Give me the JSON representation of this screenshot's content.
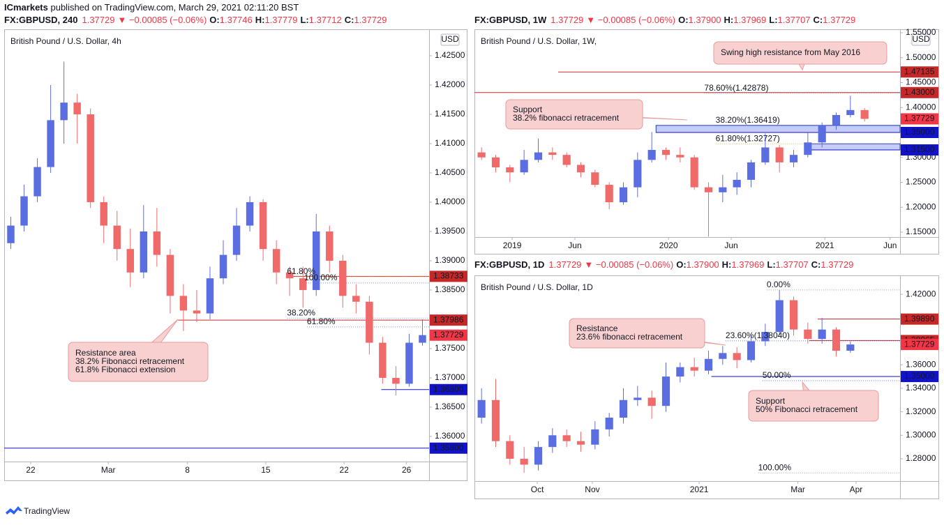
{
  "header": {
    "publisher": "ICmarkets",
    "published": " published on TradingView.com, March 29, 2021 02:11:20 BST"
  },
  "footer": {
    "brand": "TradingView"
  },
  "chart_data": [
    {
      "type": "candlestick",
      "title": "British Pound / U.S. Dollar, 4h",
      "currency": "USD",
      "info": {
        "symbol": "FX:GBPUSD, 240",
        "last": "1.37729",
        "change": "▼ −0.00085 (−0.06%)",
        "ohlc": [
          [
            "O:",
            "1.37746"
          ],
          [
            "H:",
            "1.37779"
          ],
          [
            "L:",
            "1.37712"
          ],
          [
            "C:",
            "1.37729"
          ]
        ]
      },
      "up_color": "#5b6ee1",
      "down_color": "#f06a6a",
      "xlim": [
        0,
        32
      ],
      "xticks": [
        {
          "value": 2.0,
          "label": "22"
        },
        {
          "value": 7.84,
          "label": "Mar"
        },
        {
          "value": 13.8,
          "label": "8"
        },
        {
          "value": 19.7,
          "label": "15"
        },
        {
          "value": 25.6,
          "label": "22"
        },
        {
          "value": 30.3,
          "label": "26"
        }
      ],
      "ylim": [
        1.35571,
        1.42952
      ],
      "yticks": [
        {
          "value": 1.36,
          "label": "1.36000"
        },
        {
          "value": 1.365,
          "label": "1.36500"
        },
        {
          "value": 1.37,
          "label": "1.37000"
        },
        {
          "value": 1.375,
          "label": "1.37500"
        },
        {
          "value": 1.38,
          "label": "1.38000"
        },
        {
          "value": 1.385,
          "label": "1.38500"
        },
        {
          "value": 1.39,
          "label": "1.39000"
        },
        {
          "value": 1.395,
          "label": "1.39500"
        },
        {
          "value": 1.4,
          "label": "1.40000"
        },
        {
          "value": 1.405,
          "label": "1.40500"
        },
        {
          "value": 1.41,
          "label": "1.41000"
        },
        {
          "value": 1.415,
          "label": "1.41500"
        },
        {
          "value": 1.42,
          "label": "1.42000"
        },
        {
          "value": 1.425,
          "label": "1.42500"
        }
      ],
      "open": [
        1.393,
        1.396,
        1.401,
        1.406,
        1.414,
        1.417,
        1.415,
        1.4,
        1.396,
        1.392,
        1.388,
        1.395,
        1.391,
        1.384,
        1.3815,
        1.381,
        1.387,
        1.391,
        1.396,
        1.4,
        1.392,
        1.388,
        1.387,
        1.385,
        1.395,
        1.39,
        1.384,
        1.383,
        1.376,
        1.37,
        1.369,
        1.376
      ],
      "high": [
        1.3975,
        1.403,
        1.4075,
        1.42,
        1.424,
        1.4185,
        1.416,
        1.401,
        1.3985,
        1.3955,
        1.3995,
        1.399,
        1.392,
        1.386,
        1.385,
        1.389,
        1.3935,
        1.399,
        1.401,
        1.4005,
        1.3935,
        1.389,
        1.389,
        1.398,
        1.396,
        1.391,
        1.386,
        1.384,
        1.377,
        1.372,
        1.3775,
        1.38
      ],
      "low": [
        1.392,
        1.395,
        1.4,
        1.405,
        1.41,
        1.41,
        1.399,
        1.393,
        1.39,
        1.3855,
        1.387,
        1.389,
        1.381,
        1.378,
        1.3795,
        1.38,
        1.386,
        1.39,
        1.395,
        1.39,
        1.386,
        1.384,
        1.382,
        1.384,
        1.388,
        1.382,
        1.381,
        1.374,
        1.369,
        1.367,
        1.3685,
        1.3755
      ],
      "close": [
        1.396,
        1.401,
        1.406,
        1.414,
        1.417,
        1.415,
        1.4,
        1.396,
        1.392,
        1.388,
        1.395,
        1.391,
        1.384,
        1.3815,
        1.381,
        1.387,
        1.391,
        1.396,
        1.4,
        1.392,
        1.388,
        1.387,
        1.385,
        1.395,
        1.39,
        1.384,
        1.383,
        1.376,
        1.37,
        1.369,
        1.376,
        1.3773
      ],
      "levels": [
        {
          "value": 1.38733,
          "label": "1.38733",
          "color": "#c62828",
          "from": 21.3
        },
        {
          "value": 1.37986,
          "label": "1.37986",
          "color": "#c62828",
          "from": 13.1
        },
        {
          "value": 1.37729,
          "label": "1.37729",
          "color": "#f23645"
        },
        {
          "value": 1.368,
          "label": "1.36800",
          "color": "#1212c8",
          "from": 28.4
        },
        {
          "value": 1.358,
          "label": "1.35800",
          "color": "#1212c8",
          "from": 0
        }
      ],
      "fibs": [
        {
          "value": 1.3873,
          "label": "61.80%",
          "color": "#e0a000",
          "from": 21.3
        },
        {
          "value": 1.3862,
          "label": "100.00%",
          "color": "#2962ff",
          "from": 22.6
        },
        {
          "value": 1.3802,
          "label": "38.20%",
          "color": "#2962ff",
          "from": 21.3
        },
        {
          "value": 1.3787,
          "label": "61.80%",
          "color": "#2962ff",
          "from": 22.8
        }
      ],
      "annotations": [
        {
          "lines": [
            "Resistance area",
            "38.2% Fibonacci retracement",
            "61.8% Fibonacci extension"
          ]
        }
      ]
    },
    {
      "type": "candlestick",
      "title": "British Pound / U.S. Dollar, 1W,",
      "currency": "USD",
      "info": {
        "symbol": "FX:GBPUSD, 1W",
        "last": "1.37729",
        "change": "▼ −0.00085 (−0.06%)",
        "ohlc": [
          [
            "O:",
            "1.37900"
          ],
          [
            "H:",
            "1.37969"
          ],
          [
            "L:",
            "1.37707"
          ],
          [
            "C:",
            "1.37729"
          ]
        ]
      },
      "up_color": "#5b6ee1",
      "down_color": "#f06a6a",
      "xlim": [
        0,
        30
      ],
      "xticks": [
        {
          "value": 2.66,
          "label": "2019"
        },
        {
          "value": 7.08,
          "label": "Jun"
        },
        {
          "value": 13.68,
          "label": "2020"
        },
        {
          "value": 18.1,
          "label": "Jun"
        },
        {
          "value": 24.7,
          "label": "2021"
        },
        {
          "value": 29.3,
          "label": "Jun"
        }
      ],
      "ylim": [
        1.1402,
        1.557
      ],
      "yticks": [
        {
          "value": 1.15,
          "label": "1.15000"
        },
        {
          "value": 1.2,
          "label": "1.20000"
        },
        {
          "value": 1.25,
          "label": "1.25000"
        },
        {
          "value": 1.3,
          "label": "1.30000"
        },
        {
          "value": 1.35,
          "label": "1.35000"
        },
        {
          "value": 1.4,
          "label": "1.40000"
        },
        {
          "value": 1.45,
          "label": "1.45000"
        },
        {
          "value": 1.5,
          "label": "1.50000"
        },
        {
          "value": 1.55,
          "label": "1.55000"
        }
      ],
      "open": [
        1.31,
        1.3,
        1.28,
        1.27,
        1.295,
        1.31,
        1.305,
        1.285,
        1.27,
        1.245,
        1.21,
        1.24,
        1.295,
        1.315,
        1.305,
        1.3,
        1.24,
        1.23,
        1.24,
        1.255,
        1.29,
        1.32,
        1.29,
        1.305,
        1.33,
        1.365,
        1.385,
        1.395
      ],
      "high": [
        1.32,
        1.305,
        1.285,
        1.315,
        1.338,
        1.32,
        1.31,
        1.29,
        1.275,
        1.25,
        1.25,
        1.31,
        1.351,
        1.32,
        1.32,
        1.305,
        1.25,
        1.265,
        1.27,
        1.295,
        1.348,
        1.325,
        1.315,
        1.35,
        1.37,
        1.39,
        1.4237,
        1.399
      ],
      "low": [
        1.295,
        1.27,
        1.25,
        1.265,
        1.29,
        1.295,
        1.28,
        1.26,
        1.24,
        1.196,
        1.205,
        1.22,
        1.29,
        1.295,
        1.29,
        1.235,
        1.1412,
        1.21,
        1.225,
        1.24,
        1.285,
        1.27,
        1.28,
        1.3,
        1.32,
        1.355,
        1.38,
        1.372
      ],
      "close": [
        1.3,
        1.28,
        1.27,
        1.295,
        1.31,
        1.305,
        1.285,
        1.27,
        1.245,
        1.21,
        1.24,
        1.295,
        1.315,
        1.305,
        1.3,
        1.24,
        1.23,
        1.24,
        1.255,
        1.29,
        1.32,
        1.29,
        1.305,
        1.33,
        1.365,
        1.385,
        1.395,
        1.3773
      ],
      "zones": [
        {
          "from": 12.8,
          "low": 1.35,
          "high": 1.36419
        },
        {
          "from": 23.7,
          "low": 1.315,
          "high": 1.32727
        }
      ],
      "levels": [
        {
          "value": 1.47135,
          "label": "1.47135",
          "color": "#c62828",
          "from": 5.9
        },
        {
          "value": 1.43,
          "label": "1.43000",
          "color": "#c62828",
          "from": 0
        },
        {
          "value": 1.37729,
          "label": "1.37729",
          "color": "#f23645"
        },
        {
          "value": 1.35,
          "label": "1.35000",
          "color": "#1212c8",
          "from": 12.8
        },
        {
          "value": 1.315,
          "label": "1.31500",
          "color": "#1212c8",
          "from": 23.7
        }
      ],
      "fibs": [
        {
          "value": 1.42878,
          "label": "78.60%(1.42878)",
          "color": "#2196c8",
          "from": 16.2
        },
        {
          "value": 1.36419,
          "label": "38.20%(1.36419)",
          "color": "#1a3cc8",
          "from": 17
        },
        {
          "value": 1.32727,
          "label": "61.80%(1.32727)",
          "color": "#c89600",
          "from": 17
        }
      ],
      "annotations": [
        {
          "lines": [
            "Swing high resistance from May 2016"
          ]
        },
        {
          "lines": [
            "Support",
            "38.2% fibonacci retracement"
          ]
        }
      ]
    },
    {
      "type": "candlestick",
      "title": "British Pound / U.S. Dollar, 1D",
      "info": {
        "symbol": "FX:GBPUSD, 1D",
        "last": "1.37729",
        "change": "▼ −0.00085 (−0.06%)",
        "ohlc": [
          [
            "O:",
            "1.37900"
          ],
          [
            "H:",
            "1.37969"
          ],
          [
            "L:",
            "1.37707"
          ],
          [
            "C:",
            "1.37729"
          ]
        ]
      },
      "up_color": "#5b6ee1",
      "down_color": "#f06a6a",
      "xlim": [
        0,
        30
      ],
      "xticks": [
        {
          "value": 4.43,
          "label": "Oct"
        },
        {
          "value": 8.31,
          "label": "Nov"
        },
        {
          "value": 15.84,
          "label": "2021"
        },
        {
          "value": 22.8,
          "label": "Mar"
        },
        {
          "value": 26.9,
          "label": "Apr"
        }
      ],
      "ylim": [
        1.261,
        1.4361
      ],
      "yticks": [
        {
          "value": 1.28,
          "label": "1.28000"
        },
        {
          "value": 1.3,
          "label": "1.30000"
        },
        {
          "value": 1.32,
          "label": "1.32000"
        },
        {
          "value": 1.34,
          "label": "1.34000"
        },
        {
          "value": 1.36,
          "label": "1.36000"
        },
        {
          "value": 1.38,
          "label": "1.38000"
        },
        {
          "value": 1.4,
          "label": "1.40000"
        },
        {
          "value": 1.42,
          "label": "1.42000"
        }
      ],
      "open": [
        1.315,
        1.33,
        1.295,
        1.28,
        1.275,
        1.29,
        1.3,
        1.295,
        1.292,
        1.305,
        1.315,
        1.33,
        1.332,
        1.325,
        1.35,
        1.358,
        1.355,
        1.365,
        1.37,
        1.364,
        1.38,
        1.388,
        1.415,
        1.39,
        1.382,
        1.39,
        1.372
      ],
      "high": [
        1.34,
        1.348,
        1.3,
        1.29,
        1.295,
        1.306,
        1.305,
        1.303,
        1.312,
        1.319,
        1.34,
        1.342,
        1.338,
        1.362,
        1.362,
        1.366,
        1.372,
        1.376,
        1.375,
        1.385,
        1.395,
        1.4237,
        1.418,
        1.396,
        1.4,
        1.392,
        1.38
      ],
      "low": [
        1.31,
        1.29,
        1.275,
        1.268,
        1.27,
        1.285,
        1.29,
        1.286,
        1.288,
        1.299,
        1.31,
        1.325,
        1.314,
        1.32,
        1.345,
        1.35,
        1.352,
        1.36,
        1.357,
        1.362,
        1.376,
        1.385,
        1.385,
        1.378,
        1.378,
        1.367,
        1.37
      ],
      "close": [
        1.33,
        1.295,
        1.28,
        1.275,
        1.29,
        1.3,
        1.295,
        1.292,
        1.305,
        1.315,
        1.33,
        1.332,
        1.325,
        1.35,
        1.358,
        1.355,
        1.365,
        1.37,
        1.364,
        1.38,
        1.388,
        1.415,
        1.39,
        1.382,
        1.39,
        1.372,
        1.3773
      ],
      "levels": [
        {
          "value": 1.3989,
          "label": "1.39890",
          "color": "#c62828",
          "from": 24.2
        },
        {
          "value": 1.38065,
          "label": "1.38065",
          "color": "#c62828",
          "from": 23.6
        },
        {
          "value": 1.37729,
          "label": "1.37729",
          "color": "#f23645"
        },
        {
          "value": 1.35,
          "label": "1.35000",
          "color": "#1212c8",
          "from": 16.7
        }
      ],
      "fibs": [
        {
          "value": 1.4237,
          "label": "0.00%",
          "color": "#787b86",
          "from": 20.6
        },
        {
          "value": 1.3804,
          "label": "23.60%(1.38040)",
          "color": "#1a3cc8",
          "from": 17.7
        },
        {
          "value": 1.3465,
          "label": "50.00%",
          "color": "#1a3cc8",
          "from": 20.3
        },
        {
          "value": 1.268,
          "label": "100.00%",
          "color": "#787b86",
          "from": 20
        }
      ],
      "annotations": [
        {
          "lines": [
            "Resistance",
            "23.6% fibonacci retracement"
          ]
        },
        {
          "lines": [
            "Support",
            "50% Fibonacci retracement"
          ]
        }
      ]
    }
  ]
}
